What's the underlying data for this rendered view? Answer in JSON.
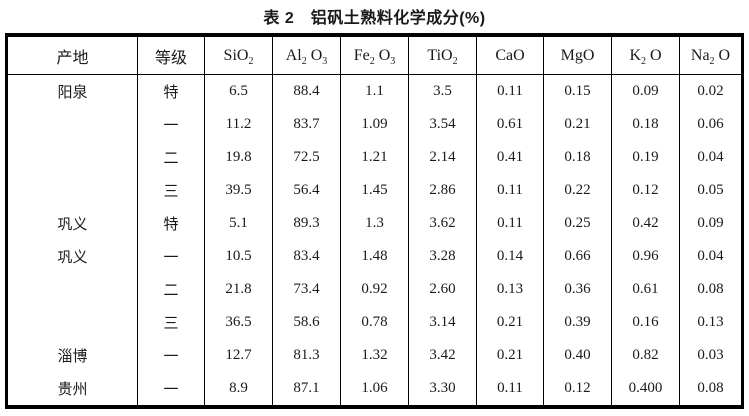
{
  "title": "表 2　铝矾土熟料化学成分(%)",
  "table": {
    "origin_header": "产地",
    "grade_header": "等级",
    "chem_headers": [
      {
        "name": "SiO2",
        "parts": [
          {
            "t": "SiO"
          },
          {
            "t": "2",
            "sub": true
          }
        ]
      },
      {
        "name": "Al2O3",
        "parts": [
          {
            "t": "Al"
          },
          {
            "t": "2",
            "sub": true
          },
          {
            "t": " O"
          },
          {
            "t": "3",
            "sub": true
          }
        ]
      },
      {
        "name": "Fe2O3",
        "parts": [
          {
            "t": "Fe"
          },
          {
            "t": "2",
            "sub": true
          },
          {
            "t": " O"
          },
          {
            "t": "3",
            "sub": true
          }
        ]
      },
      {
        "name": "TiO2",
        "parts": [
          {
            "t": "TiO"
          },
          {
            "t": "2",
            "sub": true
          }
        ]
      },
      {
        "name": "CaO",
        "parts": [
          {
            "t": "CaO"
          }
        ]
      },
      {
        "name": "MgO",
        "parts": [
          {
            "t": "MgO"
          }
        ]
      },
      {
        "name": "K2O",
        "parts": [
          {
            "t": "K"
          },
          {
            "t": "2",
            "sub": true
          },
          {
            "t": " O"
          }
        ]
      },
      {
        "name": "Na2O",
        "parts": [
          {
            "t": "Na"
          },
          {
            "t": "2",
            "sub": true
          },
          {
            "t": " O"
          }
        ]
      }
    ],
    "rows": [
      {
        "origin": "阳泉",
        "grade": "特",
        "values": [
          "6.5",
          "88.4",
          "1.1",
          "3.5",
          "0.11",
          "0.15",
          "0.09",
          "0.02"
        ]
      },
      {
        "origin": "",
        "grade": "一",
        "values": [
          "11.2",
          "83.7",
          "1.09",
          "3.54",
          "0.61",
          "0.21",
          "0.18",
          "0.06"
        ]
      },
      {
        "origin": "",
        "grade": "二",
        "values": [
          "19.8",
          "72.5",
          "1.21",
          "2.14",
          "0.41",
          "0.18",
          "0.19",
          "0.04"
        ]
      },
      {
        "origin": "",
        "grade": "三",
        "values": [
          "39.5",
          "56.4",
          "1.45",
          "2.86",
          "0.11",
          "0.22",
          "0.12",
          "0.05"
        ]
      },
      {
        "origin": "巩义",
        "grade": "特",
        "values": [
          "5.1",
          "89.3",
          "1.3",
          "3.62",
          "0.11",
          "0.25",
          "0.42",
          "0.09"
        ]
      },
      {
        "origin": "巩义",
        "grade": "一",
        "values": [
          "10.5",
          "83.4",
          "1.48",
          "3.28",
          "0.14",
          "0.66",
          "0.96",
          "0.04"
        ]
      },
      {
        "origin": "",
        "grade": "二",
        "values": [
          "21.8",
          "73.4",
          "0.92",
          "2.60",
          "0.13",
          "0.36",
          "0.61",
          "0.08"
        ]
      },
      {
        "origin": "",
        "grade": "三",
        "values": [
          "36.5",
          "58.6",
          "0.78",
          "3.14",
          "0.21",
          "0.39",
          "0.16",
          "0.13"
        ]
      },
      {
        "origin": "淄博",
        "grade": "一",
        "values": [
          "12.7",
          "81.3",
          "1.32",
          "3.42",
          "0.21",
          "0.40",
          "0.82",
          "0.03"
        ]
      },
      {
        "origin": "贵州",
        "grade": "一",
        "values": [
          "8.9",
          "87.1",
          "1.06",
          "3.30",
          "0.11",
          "0.12",
          "0.400",
          "0.08"
        ]
      }
    ]
  }
}
